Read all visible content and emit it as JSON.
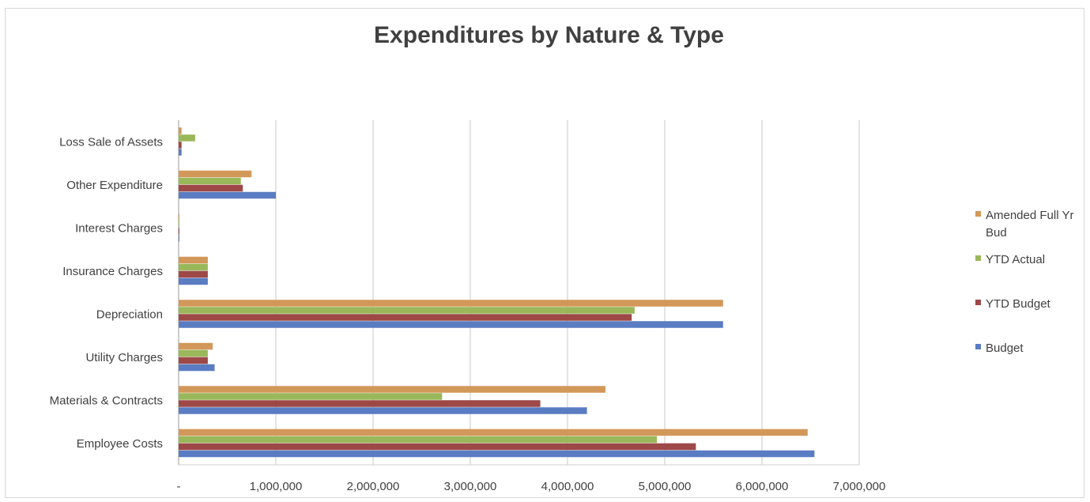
{
  "chart_data": {
    "type": "bar",
    "orientation": "horizontal",
    "title": "Expenditures by Nature & Type",
    "xlabel": "",
    "ylabel": "",
    "xlim": [
      0,
      7000000
    ],
    "x_ticks": [
      "-",
      "1,000,000",
      "2,000,000",
      "3,000,000",
      "4,000,000",
      "5,000,000",
      "6,000,000",
      "7,000,000"
    ],
    "categories": [
      "Employee Costs",
      "Materials & Contracts",
      "Utility Charges",
      "Depreciation",
      "Insurance Charges",
      "Interest Charges",
      "Other Expenditure",
      "Loss Sale of Assets"
    ],
    "series": [
      {
        "name": "Budget",
        "color": "#5A7CC2",
        "values": [
          6540000,
          4200000,
          370000,
          5600000,
          300000,
          8000,
          1000000,
          30000
        ]
      },
      {
        "name": "YTD Budget",
        "color": "#9E4848",
        "values": [
          5320000,
          3720000,
          300000,
          4660000,
          300000,
          8000,
          660000,
          30000
        ]
      },
      {
        "name": "YTD Actual",
        "color": "#9AB85A",
        "values": [
          4920000,
          2710000,
          300000,
          4690000,
          300000,
          5000,
          640000,
          170000
        ]
      },
      {
        "name": "Amended Full Yr Bud",
        "color": "#D2985A",
        "values": [
          6470000,
          4390000,
          350000,
          5600000,
          300000,
          8000,
          750000,
          30000
        ]
      }
    ],
    "grid": "vertical-major",
    "legend_position": "right"
  },
  "legend": {
    "items": [
      {
        "label": "Amended Full Yr Bud",
        "color": "#D2985A"
      },
      {
        "label": "YTD Actual",
        "color": "#9AB85A"
      },
      {
        "label": "YTD Budget",
        "color": "#9E4848"
      },
      {
        "label": "Budget",
        "color": "#5A7CC2"
      }
    ]
  }
}
